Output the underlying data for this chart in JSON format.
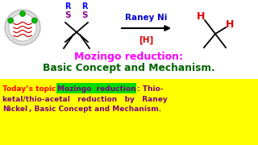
{
  "bg_color": "#ffffff",
  "title_line1": "Mozingo reduction:",
  "title_line2": "Basic Concept and Mechanism.",
  "title_line1_color": "#ff00ff",
  "title_line2_color": "#006400",
  "raney_ni_text": "Raney Ni",
  "raney_ni_color": "#0000cc",
  "h_label_color": "#dd0000",
  "bracket_h_color": "#dd0000",
  "bottom_prefix_color": "#ff0000",
  "bottom_green_bg": "#00dd00",
  "bottom_green_text_color": "#800080",
  "bottom_yellow_bg": "#ffff00",
  "bottom_purple": "#800080"
}
